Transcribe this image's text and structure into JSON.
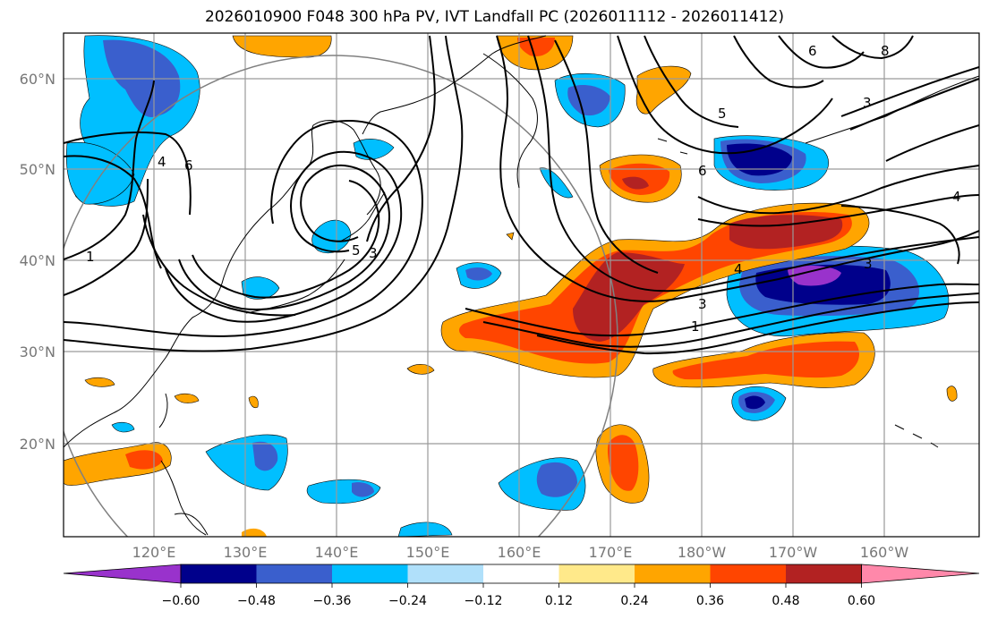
{
  "title": "2026010900 F048 300 hPa PV, IVT Landfall PC (2026011112 - 2026011412)",
  "lat_labels": [
    "60°N",
    "50°N",
    "40°N",
    "30°N",
    "20°N"
  ],
  "lon_labels": [
    "120°E",
    "130°E",
    "140°E",
    "150°E",
    "160°E",
    "170°E",
    "180°W",
    "170°W",
    "160°W"
  ],
  "colorbar": {
    "tick_labels": [
      "−0.60",
      "−0.48",
      "−0.36",
      "−0.24",
      "−0.12",
      "0.12",
      "0.24",
      "0.36",
      "0.48",
      "0.60"
    ],
    "colors": [
      "#9932cc",
      "#00008b",
      "#3a5fcd",
      "#00bfff",
      "#b0e0fa",
      "#ffffff",
      "#ffe98a",
      "#ffa500",
      "#ff4500",
      "#b22222",
      "#ff88aa"
    ]
  },
  "contour_labels": [
    "1",
    "3",
    "5",
    "6",
    "4",
    "3",
    "4",
    "8",
    "6",
    "5",
    "3",
    "1",
    "3",
    "4",
    "6"
  ]
}
